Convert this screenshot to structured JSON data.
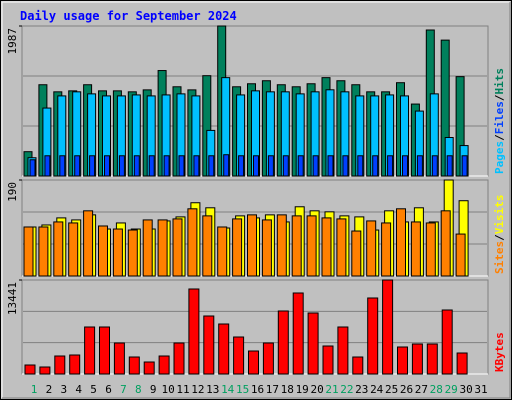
{
  "chart_data": [
    {
      "type": "bar",
      "title": "Daily usage for September 2024",
      "categories": [
        "1",
        "2",
        "3",
        "4",
        "5",
        "6",
        "7",
        "8",
        "9",
        "10",
        "11",
        "12",
        "13",
        "14",
        "15",
        "16",
        "17",
        "18",
        "19",
        "20",
        "21",
        "22",
        "23",
        "24",
        "25",
        "26",
        "27",
        "28",
        "29",
        "30",
        "31"
      ],
      "highlight_categories": [
        "1",
        "7",
        "8",
        "14",
        "15",
        "21",
        "22",
        "28",
        "29"
      ],
      "category_color": "#008040",
      "highlight_color": "#00a060",
      "legend_separator": "/",
      "ylim": [
        0,
        1987
      ],
      "yticks": [
        1987
      ],
      "series": [
        {
          "name": "Hits",
          "color": "#00805c",
          "values": [
            322,
            1209,
            1115,
            1128,
            1209,
            1128,
            1128,
            1115,
            1141,
            1397,
            1182,
            1141,
            1329,
            1987,
            1182,
            1222,
            1262,
            1209,
            1182,
            1222,
            1303,
            1262,
            1209,
            1115,
            1115,
            1236,
            953,
            1934,
            1800,
            1316,
            null
          ]
        },
        {
          "name": "Files",
          "color": "#0040ff",
          "values": [
            215,
            268,
            268,
            268,
            268,
            268,
            268,
            268,
            268,
            268,
            268,
            268,
            268,
            282,
            268,
            268,
            268,
            268,
            268,
            268,
            268,
            268,
            268,
            268,
            268,
            268,
            268,
            268,
            268,
            268,
            null
          ]
        },
        {
          "name": "Pages",
          "color": "#00c0ff",
          "values": [
            242,
            900,
            1061,
            1115,
            1088,
            1061,
            1061,
            1074,
            1061,
            1074,
            1088,
            1061,
            604,
            1303,
            1074,
            1128,
            1115,
            1115,
            1088,
            1115,
            1142,
            1115,
            1061,
            1061,
            1074,
            1061,
            860,
            1088,
            510,
            403,
            null
          ]
        }
      ]
    },
    {
      "type": "bar",
      "legend_separator": "/",
      "ylim": [
        0,
        190
      ],
      "yticks": [
        190
      ],
      "series": [
        {
          "name": "Visits",
          "color": "#ffff00",
          "values": [
            97,
            101,
            115,
            111,
            121,
            93,
            105,
            93,
            93,
            109,
            117,
            145,
            135,
            95,
            119,
            115,
            121,
            107,
            137,
            129,
            127,
            119,
            117,
            91,
            129,
            107,
            135,
            107,
            190,
            149,
            null
          ]
        },
        {
          "name": "Sites",
          "color": "#ff8000",
          "values": [
            97,
            97,
            107,
            105,
            129,
            99,
            93,
            91,
            111,
            111,
            113,
            133,
            119,
            97,
            113,
            121,
            111,
            121,
            119,
            119,
            115,
            113,
            89,
            109,
            105,
            133,
            107,
            105,
            129,
            83,
            null
          ]
        }
      ]
    },
    {
      "type": "bar",
      "ylim": [
        0,
        13441
      ],
      "yticks": [
        13441
      ],
      "series": [
        {
          "name": "KBytes",
          "color": "#ff0000",
          "values": [
            1287,
            1001,
            2574,
            2717,
            6721,
            6721,
            4433,
            2431,
            1716,
            2574,
            4433,
            12155,
            8294,
            7150,
            5291,
            3289,
            4433,
            9009,
            11583,
            8723,
            4004,
            6721,
            2431,
            10868,
            13441,
            3861,
            4290,
            4290,
            9152,
            3003,
            null
          ]
        }
      ]
    }
  ]
}
